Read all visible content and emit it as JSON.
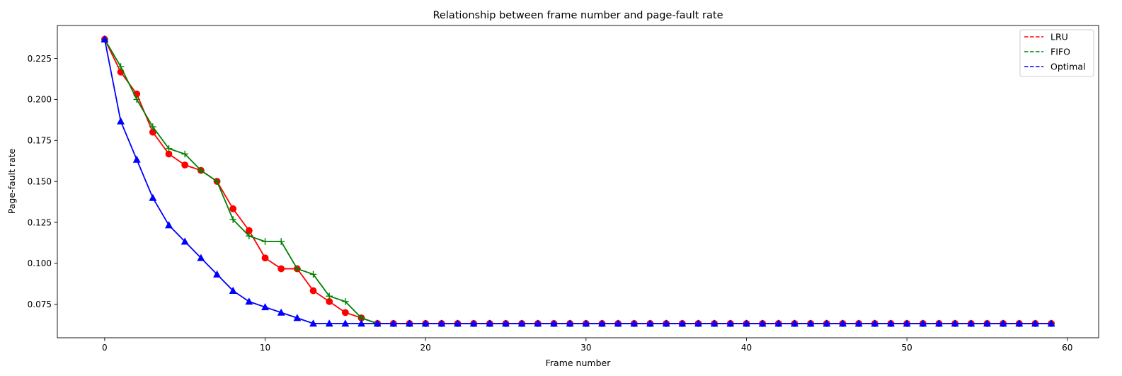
{
  "chart_data": {
    "type": "line",
    "title": "Relationship between frame number and page-fault rate",
    "xlabel": "Frame number",
    "ylabel": "Page-fault rate",
    "xlim": [
      -2.95,
      61.95
    ],
    "ylim": [
      0.0546,
      0.2451
    ],
    "xticks": [
      0,
      10,
      20,
      30,
      40,
      50,
      60
    ],
    "yticks": [
      0.075,
      0.1,
      0.125,
      0.15,
      0.175,
      0.2,
      0.225
    ],
    "ytick_labels": [
      "0.075",
      "0.100",
      "0.125",
      "0.150",
      "0.175",
      "0.200",
      "0.225"
    ],
    "grid": false,
    "legend_position": "top-right",
    "x": [
      0,
      1,
      2,
      3,
      4,
      5,
      6,
      7,
      8,
      9,
      10,
      11,
      12,
      13,
      14,
      15,
      16,
      17,
      18,
      19,
      20,
      21,
      22,
      23,
      24,
      25,
      26,
      27,
      28,
      29,
      30,
      31,
      32,
      33,
      34,
      35,
      36,
      37,
      38,
      39,
      40,
      41,
      42,
      43,
      44,
      45,
      46,
      47,
      48,
      49,
      50,
      51,
      52,
      53,
      54,
      55,
      56,
      57,
      58,
      59
    ],
    "series": [
      {
        "name": "LRU",
        "color": "#ff0000",
        "marker": "circle",
        "values": [
          0.2367,
          0.2167,
          0.2033,
          0.18,
          0.1667,
          0.16,
          0.1567,
          0.15,
          0.1333,
          0.12,
          0.1033,
          0.0967,
          0.0967,
          0.0833,
          0.0767,
          0.07,
          0.0667,
          0.0633,
          0.0633,
          0.0633,
          0.0633,
          0.0633,
          0.0633,
          0.0633,
          0.0633,
          0.0633,
          0.0633,
          0.0633,
          0.0633,
          0.0633,
          0.0633,
          0.0633,
          0.0633,
          0.0633,
          0.0633,
          0.0633,
          0.0633,
          0.0633,
          0.0633,
          0.0633,
          0.0633,
          0.0633,
          0.0633,
          0.0633,
          0.0633,
          0.0633,
          0.0633,
          0.0633,
          0.0633,
          0.0633,
          0.0633,
          0.0633,
          0.0633,
          0.0633,
          0.0633,
          0.0633,
          0.0633,
          0.0633,
          0.0633,
          0.0633
        ]
      },
      {
        "name": "FIFO",
        "color": "#008000",
        "marker": "plus",
        "values": [
          0.2367,
          0.22,
          0.2,
          0.1833,
          0.17,
          0.1667,
          0.1567,
          0.15,
          0.1267,
          0.1167,
          0.1133,
          0.1133,
          0.0967,
          0.0933,
          0.08,
          0.0767,
          0.0667,
          0.0633,
          0.0633,
          0.0633,
          0.0633,
          0.0633,
          0.0633,
          0.0633,
          0.0633,
          0.0633,
          0.0633,
          0.0633,
          0.0633,
          0.0633,
          0.0633,
          0.0633,
          0.0633,
          0.0633,
          0.0633,
          0.0633,
          0.0633,
          0.0633,
          0.0633,
          0.0633,
          0.0633,
          0.0633,
          0.0633,
          0.0633,
          0.0633,
          0.0633,
          0.0633,
          0.0633,
          0.0633,
          0.0633,
          0.0633,
          0.0633,
          0.0633,
          0.0633,
          0.0633,
          0.0633,
          0.0633,
          0.0633,
          0.0633,
          0.0633
        ]
      },
      {
        "name": "Optimal",
        "color": "#0000ff",
        "marker": "triangle",
        "values": [
          0.2367,
          0.1867,
          0.1633,
          0.14,
          0.1233,
          0.1133,
          0.1033,
          0.0933,
          0.0833,
          0.0767,
          0.0733,
          0.07,
          0.0667,
          0.0633,
          0.0633,
          0.0633,
          0.0633,
          0.0633,
          0.0633,
          0.0633,
          0.0633,
          0.0633,
          0.0633,
          0.0633,
          0.0633,
          0.0633,
          0.0633,
          0.0633,
          0.0633,
          0.0633,
          0.0633,
          0.0633,
          0.0633,
          0.0633,
          0.0633,
          0.0633,
          0.0633,
          0.0633,
          0.0633,
          0.0633,
          0.0633,
          0.0633,
          0.0633,
          0.0633,
          0.0633,
          0.0633,
          0.0633,
          0.0633,
          0.0633,
          0.0633,
          0.0633,
          0.0633,
          0.0633,
          0.0633,
          0.0633,
          0.0633,
          0.0633,
          0.0633,
          0.0633,
          0.0633
        ]
      }
    ]
  }
}
